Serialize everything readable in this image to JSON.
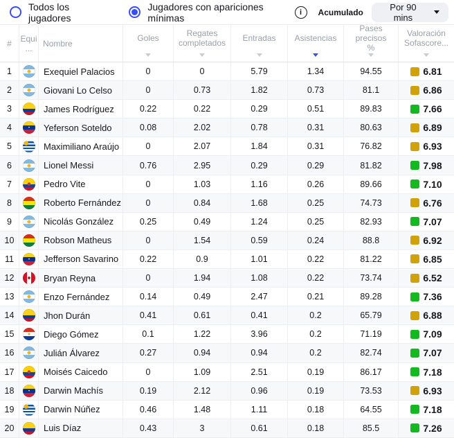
{
  "colors": {
    "accent": "#374df5",
    "rating-gold": "#d1a208",
    "rating-green": "#12ba1f",
    "header-text": "#9aa0a8",
    "row-alt": "#f7f8f9",
    "border": "#eceef1",
    "dropdown-bg": "#eef0f3",
    "sort-inactive": "#c8ccd3"
  },
  "filters": {
    "all_players_label": "Todos los jugadores",
    "min_appearances_label": "Jugadores con apariciones mínimas",
    "selected": "min_appearances",
    "accumulated_label": "Acumulado",
    "per90_value": "Por 90 mins"
  },
  "table": {
    "columns": [
      {
        "key": "rank",
        "label": "#",
        "sortable": false,
        "align": "center"
      },
      {
        "key": "team",
        "label": "Equi\n...",
        "sortable": false,
        "align": "center"
      },
      {
        "key": "name",
        "label": "Nombre",
        "sortable": false,
        "align": "left"
      },
      {
        "key": "goals",
        "label": "Goles",
        "sortable": true,
        "sorted": false
      },
      {
        "key": "dribbles",
        "label": "Regates\ncompletados",
        "sortable": true,
        "sorted": false
      },
      {
        "key": "tackles",
        "label": "Entradas",
        "sortable": true,
        "sorted": false
      },
      {
        "key": "assists",
        "label": "Asistencias",
        "sortable": true,
        "sorted": true
      },
      {
        "key": "passes",
        "label": "Pases precisos\n%",
        "sortable": true,
        "sorted": false
      },
      {
        "key": "rating",
        "label": "Valoración\nSofascore...",
        "sortable": true,
        "sorted": false
      }
    ],
    "rows": [
      {
        "rank": "1",
        "team": "argentina",
        "name": "Exequiel Palacios",
        "goals": "0",
        "dribbles": "0",
        "tackles": "5.79",
        "assists": "1.34",
        "passes": "94.55",
        "rating": "6.81",
        "rating_tier": "gold"
      },
      {
        "rank": "2",
        "team": "argentina",
        "name": "Giovani Lo Celso",
        "goals": "0",
        "dribbles": "0.73",
        "tackles": "1.82",
        "assists": "0.73",
        "passes": "81.1",
        "rating": "6.86",
        "rating_tier": "gold"
      },
      {
        "rank": "3",
        "team": "colombia",
        "name": "James Rodríguez",
        "goals": "0.22",
        "dribbles": "0.22",
        "tackles": "0.29",
        "assists": "0.51",
        "passes": "89.83",
        "rating": "7.66",
        "rating_tier": "green"
      },
      {
        "rank": "4",
        "team": "venezuela",
        "name": "Yeferson Soteldo",
        "goals": "0.08",
        "dribbles": "2.02",
        "tackles": "0.78",
        "assists": "0.31",
        "passes": "80.63",
        "rating": "6.89",
        "rating_tier": "gold"
      },
      {
        "rank": "5",
        "team": "uruguay",
        "name": "Maximiliano Araújo",
        "goals": "0",
        "dribbles": "2.07",
        "tackles": "1.84",
        "assists": "0.31",
        "passes": "76.82",
        "rating": "6.93",
        "rating_tier": "gold"
      },
      {
        "rank": "6",
        "team": "argentina",
        "name": "Lionel Messi",
        "goals": "0.76",
        "dribbles": "2.95",
        "tackles": "0.29",
        "assists": "0.29",
        "passes": "81.82",
        "rating": "7.98",
        "rating_tier": "green"
      },
      {
        "rank": "7",
        "team": "ecuador",
        "name": "Pedro Vite",
        "goals": "0",
        "dribbles": "1.03",
        "tackles": "1.16",
        "assists": "0.26",
        "passes": "89.66",
        "rating": "7.10",
        "rating_tier": "green"
      },
      {
        "rank": "8",
        "team": "bolivia",
        "name": "Roberto Fernández",
        "goals": "0",
        "dribbles": "0.84",
        "tackles": "1.68",
        "assists": "0.25",
        "passes": "74.73",
        "rating": "6.76",
        "rating_tier": "gold"
      },
      {
        "rank": "9",
        "team": "argentina",
        "name": "Nicolás González",
        "goals": "0.25",
        "dribbles": "0.49",
        "tackles": "1.24",
        "assists": "0.25",
        "passes": "82.93",
        "rating": "7.07",
        "rating_tier": "green"
      },
      {
        "rank": "10",
        "team": "bolivia",
        "name": "Robson Matheus",
        "goals": "0",
        "dribbles": "1.54",
        "tackles": "0.59",
        "assists": "0.24",
        "passes": "88.8",
        "rating": "6.92",
        "rating_tier": "gold"
      },
      {
        "rank": "11",
        "team": "venezuela",
        "name": "Jefferson Savarino",
        "goals": "0.22",
        "dribbles": "0.9",
        "tackles": "1.01",
        "assists": "0.22",
        "passes": "81.22",
        "rating": "6.85",
        "rating_tier": "gold"
      },
      {
        "rank": "12",
        "team": "peru",
        "name": "Bryan Reyna",
        "goals": "0",
        "dribbles": "1.94",
        "tackles": "1.08",
        "assists": "0.22",
        "passes": "73.74",
        "rating": "6.52",
        "rating_tier": "gold"
      },
      {
        "rank": "13",
        "team": "argentina",
        "name": "Enzo Fernández",
        "goals": "0.14",
        "dribbles": "0.49",
        "tackles": "2.47",
        "assists": "0.21",
        "passes": "89.28",
        "rating": "7.36",
        "rating_tier": "green"
      },
      {
        "rank": "14",
        "team": "colombia",
        "name": "Jhon Durán",
        "goals": "0.41",
        "dribbles": "0.61",
        "tackles": "0.41",
        "assists": "0.2",
        "passes": "65.79",
        "rating": "6.88",
        "rating_tier": "gold"
      },
      {
        "rank": "15",
        "team": "paraguay",
        "name": "Diego Gómez",
        "goals": "0.1",
        "dribbles": "1.22",
        "tackles": "3.96",
        "assists": "0.2",
        "passes": "71.19",
        "rating": "7.09",
        "rating_tier": "green"
      },
      {
        "rank": "16",
        "team": "argentina",
        "name": "Julián Álvarez",
        "goals": "0.27",
        "dribbles": "0.94",
        "tackles": "0.94",
        "assists": "0.2",
        "passes": "82.74",
        "rating": "7.07",
        "rating_tier": "green"
      },
      {
        "rank": "17",
        "team": "ecuador",
        "name": "Moisés Caicedo",
        "goals": "0",
        "dribbles": "1.09",
        "tackles": "2.51",
        "assists": "0.19",
        "passes": "86.17",
        "rating": "7.18",
        "rating_tier": "green"
      },
      {
        "rank": "18",
        "team": "venezuela",
        "name": "Darwin Machís",
        "goals": "0.19",
        "dribbles": "2.12",
        "tackles": "0.96",
        "assists": "0.19",
        "passes": "73.53",
        "rating": "6.93",
        "rating_tier": "gold"
      },
      {
        "rank": "19",
        "team": "uruguay",
        "name": "Darwin Núñez",
        "goals": "0.46",
        "dribbles": "1.48",
        "tackles": "1.11",
        "assists": "0.18",
        "passes": "64.55",
        "rating": "7.18",
        "rating_tier": "green"
      },
      {
        "rank": "20",
        "team": "colombia",
        "name": "Luis Díaz",
        "goals": "0.43",
        "dribbles": "3",
        "tackles": "0.61",
        "assists": "0.18",
        "passes": "85.5",
        "rating": "7.26",
        "rating_tier": "green"
      }
    ]
  }
}
